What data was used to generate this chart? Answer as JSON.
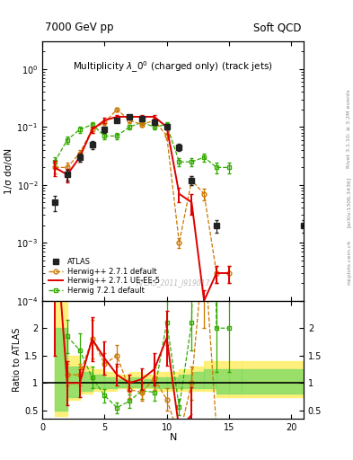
{
  "title_left": "7000 GeV pp",
  "title_right": "Soft QCD",
  "plot_title": "Multiplicity $\\lambda\\_0^0$ (charged only) (track jets)",
  "ylabel_main": "1/σ dσ/dN",
  "ylabel_ratio": "Ratio to ATLAS",
  "xlabel": "N",
  "watermark": "ATLAS_2011_I919017",
  "rivet_label": "Rivet 3.1.10; ≥ 3.2M events",
  "arxiv_label": "[arXiv:1306.3436]",
  "mcplots_label": "mcplots.cern.ch",
  "atlas_x": [
    1,
    2,
    3,
    4,
    5,
    6,
    7,
    8,
    9,
    10,
    11,
    12,
    14,
    21
  ],
  "atlas_y": [
    0.005,
    0.015,
    0.03,
    0.05,
    0.09,
    0.13,
    0.15,
    0.14,
    0.12,
    0.1,
    0.045,
    0.012,
    0.002,
    0.002
  ],
  "atlas_yerr": [
    0.0015,
    0.003,
    0.005,
    0.008,
    0.01,
    0.01,
    0.01,
    0.01,
    0.01,
    0.01,
    0.006,
    0.002,
    0.0005,
    0.0005
  ],
  "herwig_def_x": [
    1,
    2,
    3,
    4,
    5,
    6,
    7,
    8,
    9,
    10,
    11,
    12,
    13,
    14,
    15
  ],
  "herwig_def_y": [
    0.02,
    0.02,
    0.035,
    0.09,
    0.12,
    0.2,
    0.13,
    0.11,
    0.13,
    0.07,
    0.001,
    0.012,
    0.007,
    0.0003,
    0.0003
  ],
  "herwig_def_yerr": [
    0.004,
    0.004,
    0.005,
    0.01,
    0.012,
    0.015,
    0.012,
    0.01,
    0.012,
    0.008,
    0.0002,
    0.002,
    0.0015,
    0.0001,
    0.0001
  ],
  "herwig_ueee_x": [
    1,
    2,
    3,
    4,
    5,
    6,
    7,
    8,
    9,
    10,
    11,
    12,
    13,
    14,
    15
  ],
  "herwig_ueee_y": [
    0.02,
    0.015,
    0.03,
    0.09,
    0.13,
    0.15,
    0.15,
    0.15,
    0.15,
    0.1,
    0.007,
    0.005,
    0.0001,
    0.0003,
    0.0003
  ],
  "herwig_ueee_yerr": [
    0.006,
    0.004,
    0.005,
    0.01,
    0.012,
    0.012,
    0.012,
    0.012,
    0.012,
    0.01,
    0.002,
    0.002,
    5e-05,
    0.0001,
    0.0001
  ],
  "herwig72_x": [
    1,
    2,
    3,
    4,
    5,
    6,
    7,
    8,
    9,
    10,
    11,
    12,
    13,
    14,
    15
  ],
  "herwig72_y": [
    0.025,
    0.06,
    0.09,
    0.11,
    0.07,
    0.07,
    0.1,
    0.12,
    0.1,
    0.11,
    0.025,
    0.025,
    0.03,
    0.02,
    0.02
  ],
  "herwig72_yerr": [
    0.005,
    0.008,
    0.01,
    0.012,
    0.008,
    0.008,
    0.01,
    0.012,
    0.01,
    0.012,
    0.004,
    0.004,
    0.005,
    0.004,
    0.004
  ],
  "color_atlas": "#222222",
  "color_herwig_def": "#cc7700",
  "color_herwig_ueee": "#dd0000",
  "color_herwig72": "#33aa00",
  "ratio_band_x_edges": [
    1,
    2,
    3,
    4,
    5,
    6,
    7,
    8,
    9,
    10,
    11,
    12,
    13,
    14,
    15,
    16,
    21
  ],
  "ratio_band_yellow_lo": [
    0.4,
    0.7,
    0.8,
    0.85,
    0.85,
    0.9,
    0.9,
    0.9,
    0.85,
    0.85,
    0.85,
    0.85,
    0.85,
    0.75,
    0.75,
    0.75
  ],
  "ratio_band_yellow_hi": [
    2.5,
    1.5,
    1.3,
    1.25,
    1.2,
    1.15,
    1.2,
    1.15,
    1.2,
    1.2,
    1.25,
    1.3,
    1.4,
    1.4,
    1.4,
    1.4
  ],
  "ratio_band_green_lo": [
    0.5,
    0.75,
    0.85,
    0.9,
    0.9,
    0.93,
    0.93,
    0.93,
    0.9,
    0.9,
    0.9,
    0.9,
    0.9,
    0.8,
    0.8,
    0.8
  ],
  "ratio_band_green_hi": [
    2.0,
    1.3,
    1.2,
    1.15,
    1.1,
    1.07,
    1.1,
    1.07,
    1.1,
    1.1,
    1.15,
    1.2,
    1.25,
    1.25,
    1.25,
    1.25
  ],
  "r_hd_x": [
    2,
    3,
    4,
    5,
    6,
    7,
    8,
    9,
    10,
    11,
    12,
    13,
    14
  ],
  "r_hd_y": [
    1.15,
    1.15,
    1.8,
    1.35,
    1.5,
    0.88,
    0.83,
    1.08,
    0.7,
    0.02,
    1.0,
    3.5,
    0.15
  ],
  "r_hd_yerr": [
    0.2,
    0.2,
    0.35,
    0.2,
    0.2,
    0.15,
    0.15,
    0.2,
    0.2,
    0.01,
    0.3,
    1.5,
    0.1
  ],
  "r_hu_x": [
    1,
    2,
    3,
    4,
    5,
    6,
    7,
    8,
    9,
    10,
    11,
    12
  ],
  "r_hu_y": [
    4.0,
    1.0,
    1.0,
    1.8,
    1.45,
    1.15,
    1.0,
    1.07,
    1.25,
    1.82,
    0.15,
    0.42
  ],
  "r_hu_yerr": [
    2.5,
    0.4,
    0.25,
    0.4,
    0.3,
    0.2,
    0.15,
    0.2,
    0.3,
    0.5,
    0.08,
    0.5
  ],
  "r_h7_x": [
    2,
    3,
    4,
    5,
    6,
    7,
    8,
    9,
    10,
    11,
    12,
    13,
    14,
    15
  ],
  "r_h7_y": [
    1.85,
    1.6,
    1.1,
    0.77,
    0.55,
    0.67,
    0.86,
    0.83,
    2.1,
    0.56,
    2.1,
    15.0,
    2.0,
    2.0
  ],
  "r_h7_yerr": [
    0.3,
    0.3,
    0.2,
    0.12,
    0.1,
    0.12,
    0.15,
    0.15,
    0.4,
    0.15,
    0.5,
    6.0,
    0.8,
    0.8
  ],
  "xmin": 0,
  "xmax": 21,
  "ymin": 0.0001,
  "ymax": 3.0,
  "ratio_ymin": 0.35,
  "ratio_ymax": 2.5
}
